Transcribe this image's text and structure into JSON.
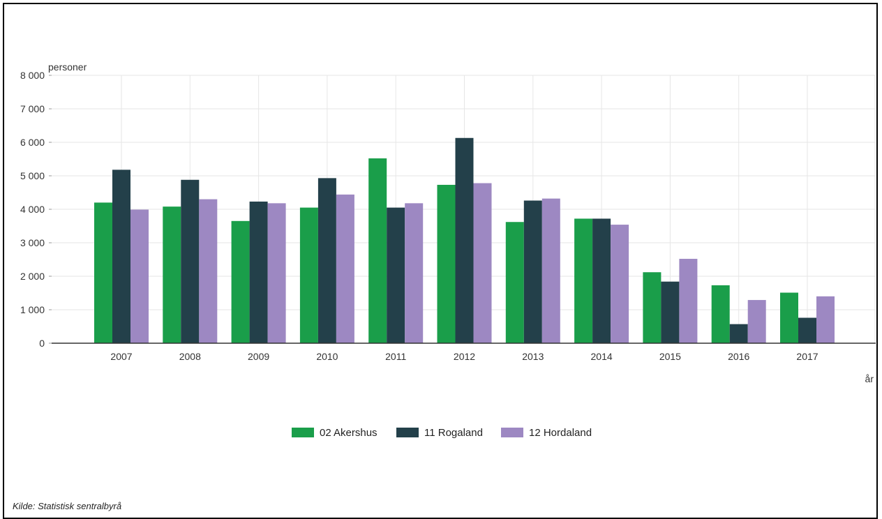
{
  "chart_data": {
    "type": "bar",
    "ylabel": "personer",
    "xlabel": "år",
    "ylim": [
      0,
      8000
    ],
    "yticks": [
      0,
      1000,
      2000,
      3000,
      4000,
      5000,
      6000,
      7000,
      8000
    ],
    "ytick_labels": [
      "0",
      "1 000",
      "2 000",
      "3 000",
      "4 000",
      "5 000",
      "6 000",
      "7 000",
      "8 000"
    ],
    "grid": true,
    "legend_position": "bottom",
    "categories": [
      "2007",
      "2008",
      "2009",
      "2010",
      "2011",
      "2012",
      "2013",
      "2014",
      "2015",
      "2016",
      "2017"
    ],
    "series": [
      {
        "name": "02 Akershus",
        "color": "#1a9e4a",
        "values": [
          4200,
          4080,
          3650,
          4050,
          5520,
          4730,
          3620,
          3720,
          2120,
          1730,
          1510
        ]
      },
      {
        "name": "11 Rogaland",
        "color": "#23404a",
        "values": [
          5180,
          4880,
          4230,
          4930,
          4050,
          6130,
          4260,
          3720,
          1840,
          570,
          760
        ]
      },
      {
        "name": "12 Hordaland",
        "color": "#9d88c2",
        "values": [
          3990,
          4300,
          4180,
          4440,
          4180,
          4780,
          4320,
          3540,
          2520,
          1290,
          1400
        ]
      }
    ]
  },
  "source_text": "Kilde:  Statistisk sentralbyrå"
}
